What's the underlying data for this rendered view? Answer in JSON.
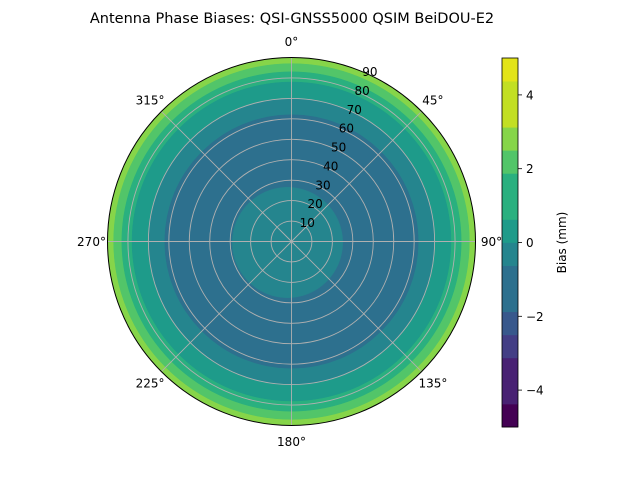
{
  "chart_data": {
    "type": "heatmap",
    "projection": "polar",
    "title": "Antenna Phase Biases: QSI-GNSS5000    QSIM BeiDOU-E2",
    "theta_zero": "N",
    "theta_direction": "clockwise",
    "theta_ticks": [
      "0°",
      "45°",
      "90°",
      "135°",
      "180°",
      "225°",
      "270°",
      "315°"
    ],
    "theta_tick_values": [
      0,
      45,
      90,
      135,
      180,
      225,
      270,
      315
    ],
    "r_ticks": [
      "10",
      "20",
      "30",
      "40",
      "50",
      "60",
      "70",
      "80",
      "90"
    ],
    "r_tick_values": [
      10,
      20,
      30,
      40,
      50,
      60,
      70,
      80,
      90
    ],
    "rlim": [
      0,
      90
    ],
    "grid": true,
    "colorbar": {
      "label": "Bias (mm)",
      "range": [
        -5,
        5
      ],
      "levels": [
        -5,
        -4.375,
        -3.75,
        -3.125,
        -2.5,
        -1.875,
        -1.25,
        -0.625,
        0,
        0.625,
        1.25,
        1.875,
        2.5,
        3.125,
        3.75,
        4.375,
        5
      ],
      "tick_labels": [
        "−4",
        "−2",
        "0",
        "2",
        "4"
      ],
      "tick_values": [
        -4,
        -2,
        0,
        2,
        4
      ],
      "colors": [
        "#440154",
        "#482173",
        "#433e85",
        "#38588c",
        "#2d708e",
        "#25858e",
        "#1e9b8a",
        "#2ab07f",
        "#52c569",
        "#86d549",
        "#c2df23",
        "#e3e418"
      ],
      "placement": "right"
    },
    "contour_bands": [
      {
        "from_r": 0,
        "to_r": 3,
        "color": "#25858e",
        "value": 0.3
      },
      {
        "from_r": 3,
        "to_r": 27,
        "color": "#25858e",
        "value": -0.3,
        "center": [
          -4,
          1
        ]
      },
      {
        "from_r": 27,
        "to_r": 62,
        "color": "#2d708e",
        "value": -1.5
      },
      {
        "from_r": 62,
        "to_r": 70,
        "color": "#25858e",
        "value": -0.3
      },
      {
        "from_r": 70,
        "to_r": 78,
        "color": "#1e9b8a",
        "value": 0.8
      },
      {
        "from_r": 78,
        "to_r": 83,
        "color": "#2ab07f",
        "value": 1.8
      },
      {
        "from_r": 83,
        "to_r": 87,
        "color": "#52c569",
        "value": 2.7
      },
      {
        "from_r": 87,
        "to_r": 90,
        "color": "#86d549",
        "value": 3.5
      }
    ]
  }
}
